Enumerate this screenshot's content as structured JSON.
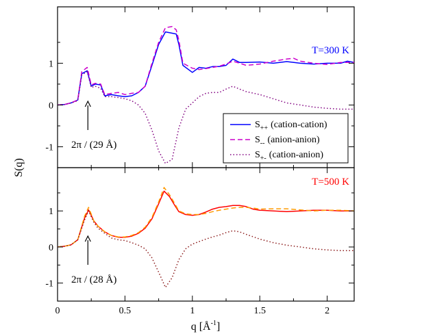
{
  "chart_data": {
    "type": "line",
    "xlabel_base": "q [",
    "xlabel_unit": "Å",
    "xlabel_sup": "-1",
    "xlabel_end": "]",
    "ylabel": "S(q)",
    "xlim": [
      0,
      2.2
    ],
    "x_ticks": [
      "0",
      "0.5",
      "1",
      "1.5",
      "2"
    ],
    "x_tick_values": [
      0,
      0.5,
      1,
      1.5,
      2
    ],
    "legend": [
      {
        "sub": "++",
        "text": "(cation-cation)",
        "style": "solid"
      },
      {
        "sub": "--",
        "text": "(anion-anion)",
        "style": "dashed"
      },
      {
        "sub": "+-",
        "text": "(cation-anion)",
        "style": "dotted"
      }
    ],
    "panels": [
      {
        "id": "top",
        "label": "T=300 K",
        "label_color": "#0000ff",
        "ylim": [
          -1.5,
          2.35
        ],
        "y_ticks": [
          "-1",
          "0",
          "1"
        ],
        "y_tick_values": [
          -1,
          0,
          1
        ],
        "annotation": "2π / (29 Å)",
        "arrow_x": 0.225,
        "series": [
          {
            "name": "S++ (cation-cation)",
            "color": "#0000ff",
            "style": "solid",
            "x": [
              0.0,
              0.05,
              0.1,
              0.15,
              0.18,
              0.22,
              0.25,
              0.28,
              0.32,
              0.35,
              0.4,
              0.45,
              0.5,
              0.55,
              0.6,
              0.65,
              0.7,
              0.75,
              0.8,
              0.85,
              0.88,
              0.9,
              0.93,
              1.0,
              1.05,
              1.1,
              1.15,
              1.2,
              1.25,
              1.3,
              1.35,
              1.4,
              1.5,
              1.6,
              1.7,
              1.8,
              1.9,
              2.0,
              2.1,
              2.15,
              2.2
            ],
            "y": [
              0.0,
              0.01,
              0.05,
              0.12,
              0.75,
              0.82,
              0.45,
              0.5,
              0.48,
              0.22,
              0.25,
              0.22,
              0.2,
              0.22,
              0.3,
              0.45,
              0.95,
              1.45,
              1.75,
              1.72,
              1.7,
              1.45,
              0.95,
              0.78,
              0.9,
              0.88,
              0.92,
              0.92,
              0.95,
              1.1,
              1.02,
              1.02,
              1.03,
              1.0,
              1.04,
              1.0,
              0.98,
              1.0,
              1.0,
              1.05,
              1.02
            ]
          },
          {
            "name": "S-- (anion-anion)",
            "color": "#cc00cc",
            "style": "dashed",
            "x": [
              0.0,
              0.05,
              0.1,
              0.15,
              0.18,
              0.22,
              0.25,
              0.28,
              0.32,
              0.35,
              0.4,
              0.45,
              0.5,
              0.55,
              0.6,
              0.65,
              0.7,
              0.75,
              0.8,
              0.85,
              0.88,
              0.9,
              0.93,
              1.0,
              1.05,
              1.1,
              1.15,
              1.2,
              1.25,
              1.3,
              1.35,
              1.4,
              1.5,
              1.6,
              1.7,
              1.75,
              1.8,
              1.9,
              2.0,
              2.1,
              2.2
            ],
            "y": [
              0.0,
              0.01,
              0.05,
              0.12,
              0.8,
              0.9,
              0.48,
              0.52,
              0.5,
              0.25,
              0.28,
              0.3,
              0.25,
              0.28,
              0.3,
              0.45,
              1.0,
              1.5,
              1.85,
              1.88,
              1.8,
              1.55,
              1.0,
              0.88,
              0.85,
              0.87,
              0.9,
              0.93,
              0.98,
              1.05,
              1.0,
              0.95,
              0.98,
              1.05,
              1.1,
              1.12,
              1.05,
              1.0,
              0.97,
              1.02,
              1.02
            ]
          },
          {
            "name": "S+- (cation-anion)",
            "color": "#800080",
            "style": "dotted",
            "x": [
              0.0,
              0.05,
              0.1,
              0.15,
              0.18,
              0.22,
              0.25,
              0.28,
              0.32,
              0.35,
              0.4,
              0.45,
              0.5,
              0.55,
              0.6,
              0.65,
              0.7,
              0.75,
              0.8,
              0.85,
              0.9,
              0.95,
              1.0,
              1.05,
              1.1,
              1.15,
              1.2,
              1.25,
              1.3,
              1.35,
              1.4,
              1.5,
              1.6,
              1.7,
              1.8,
              1.9,
              2.0,
              2.1,
              2.2
            ],
            "y": [
              0.0,
              0.01,
              0.05,
              0.1,
              0.72,
              0.8,
              0.42,
              0.45,
              0.4,
              0.2,
              0.2,
              0.18,
              0.15,
              0.1,
              0.0,
              -0.2,
              -0.6,
              -1.1,
              -1.4,
              -1.3,
              -0.55,
              -0.1,
              0.05,
              0.2,
              0.28,
              0.3,
              0.3,
              0.38,
              0.45,
              0.38,
              0.32,
              0.25,
              0.15,
              0.05,
              0.0,
              -0.05,
              -0.08,
              -0.1,
              -0.1
            ]
          }
        ]
      },
      {
        "id": "bottom",
        "label": "T=500 K",
        "label_color": "#ff0000",
        "ylim": [
          -1.5,
          2.2
        ],
        "y_ticks": [
          "-1",
          "0",
          "1"
        ],
        "y_tick_values": [
          -1,
          0,
          1
        ],
        "annotation": "2π / (28 Å)",
        "arrow_x": 0.225,
        "series": [
          {
            "name": "S++ (cation-cation)",
            "color": "#ff0000",
            "style": "solid",
            "x": [
              0.0,
              0.05,
              0.1,
              0.15,
              0.2,
              0.23,
              0.27,
              0.3,
              0.35,
              0.4,
              0.45,
              0.5,
              0.55,
              0.6,
              0.65,
              0.7,
              0.75,
              0.79,
              0.83,
              0.87,
              0.9,
              0.95,
              1.0,
              1.05,
              1.1,
              1.15,
              1.2,
              1.25,
              1.3,
              1.35,
              1.4,
              1.45,
              1.5,
              1.6,
              1.7,
              1.8,
              1.9,
              2.0,
              2.1,
              2.2
            ],
            "y": [
              0.0,
              0.02,
              0.06,
              0.2,
              0.8,
              1.03,
              0.72,
              0.58,
              0.42,
              0.32,
              0.27,
              0.27,
              0.3,
              0.38,
              0.52,
              0.78,
              1.2,
              1.55,
              1.4,
              1.15,
              0.98,
              0.9,
              0.88,
              0.9,
              0.97,
              1.05,
              1.1,
              1.12,
              1.15,
              1.15,
              1.12,
              1.05,
              1.02,
              1.0,
              0.98,
              1.0,
              1.02,
              1.02,
              1.0,
              1.0
            ]
          },
          {
            "name": "S-- (anion-anion)",
            "color": "#ff9900",
            "style": "dashed",
            "x": [
              0.0,
              0.05,
              0.1,
              0.15,
              0.2,
              0.23,
              0.27,
              0.3,
              0.35,
              0.4,
              0.45,
              0.5,
              0.55,
              0.6,
              0.65,
              0.7,
              0.75,
              0.79,
              0.83,
              0.87,
              0.9,
              0.95,
              1.0,
              1.05,
              1.1,
              1.15,
              1.2,
              1.25,
              1.3,
              1.35,
              1.4,
              1.45,
              1.5,
              1.6,
              1.7,
              1.8,
              1.9,
              2.0,
              2.1,
              2.2
            ],
            "y": [
              0.0,
              0.02,
              0.06,
              0.2,
              0.85,
              1.1,
              0.72,
              0.58,
              0.42,
              0.32,
              0.28,
              0.28,
              0.32,
              0.4,
              0.55,
              0.82,
              1.25,
              1.65,
              1.45,
              1.2,
              1.0,
              0.92,
              0.9,
              0.9,
              0.93,
              0.98,
              1.02,
              1.05,
              1.08,
              1.1,
              1.1,
              1.08,
              1.05,
              1.06,
              1.06,
              1.03,
              1.0,
              1.02,
              1.02,
              1.0
            ]
          },
          {
            "name": "S+- (cation-anion)",
            "color": "#8b1a1a",
            "style": "dotted",
            "x": [
              0.0,
              0.05,
              0.1,
              0.15,
              0.2,
              0.23,
              0.27,
              0.3,
              0.35,
              0.4,
              0.45,
              0.5,
              0.55,
              0.6,
              0.65,
              0.7,
              0.75,
              0.8,
              0.85,
              0.9,
              0.95,
              1.0,
              1.05,
              1.1,
              1.15,
              1.2,
              1.25,
              1.3,
              1.35,
              1.4,
              1.5,
              1.6,
              1.7,
              1.8,
              1.9,
              2.0,
              2.1,
              2.2
            ],
            "y": [
              0.0,
              0.02,
              0.06,
              0.2,
              0.75,
              1.0,
              0.68,
              0.52,
              0.38,
              0.25,
              0.2,
              0.18,
              0.12,
              0.05,
              -0.05,
              -0.3,
              -0.7,
              -1.12,
              -0.85,
              -0.35,
              -0.05,
              0.08,
              0.15,
              0.22,
              0.28,
              0.33,
              0.4,
              0.45,
              0.42,
              0.35,
              0.22,
              0.12,
              0.05,
              0.0,
              -0.05,
              -0.08,
              -0.1,
              -0.1
            ]
          }
        ]
      }
    ]
  }
}
